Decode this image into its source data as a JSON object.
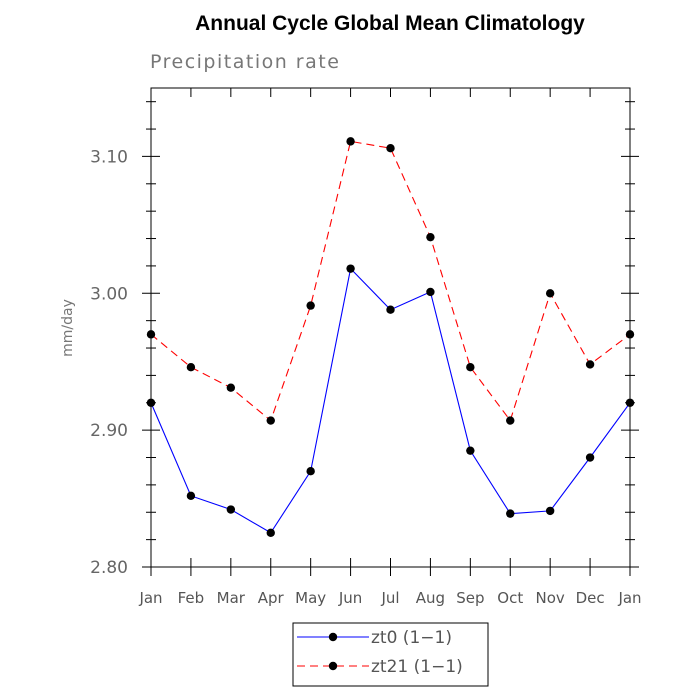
{
  "chart_data": {
    "type": "line",
    "title": "Annual Cycle Global Mean Climatology",
    "subtitle": "Precipitation rate",
    "xlabel": "",
    "ylabel": "mm/day",
    "categories": [
      "Jan",
      "Feb",
      "Mar",
      "Apr",
      "May",
      "Jun",
      "Jul",
      "Aug",
      "Sep",
      "Oct",
      "Nov",
      "Dec",
      "Jan"
    ],
    "ylim": [
      2.8,
      3.15
    ],
    "yticks": [
      "2.80",
      "2.90",
      "3.00",
      "3.10"
    ],
    "ytick_values": [
      2.8,
      2.9,
      3.0,
      3.1
    ],
    "grid": false,
    "legend_position": "bottom-center",
    "series": [
      {
        "name": "zt0 (1−1)",
        "color": "#0000ff",
        "dash": "solid",
        "marker": "circle",
        "values": [
          2.92,
          2.852,
          2.842,
          2.825,
          2.87,
          3.018,
          2.988,
          3.001,
          2.885,
          2.839,
          2.841,
          2.88,
          2.92
        ]
      },
      {
        "name": "zt21 (1−1)",
        "color": "#ff0000",
        "dash": "dashed",
        "marker": "circle",
        "values": [
          2.97,
          2.946,
          2.931,
          2.907,
          2.991,
          3.111,
          3.106,
          3.041,
          2.946,
          2.907,
          3.0,
          2.948,
          2.97
        ]
      }
    ]
  }
}
